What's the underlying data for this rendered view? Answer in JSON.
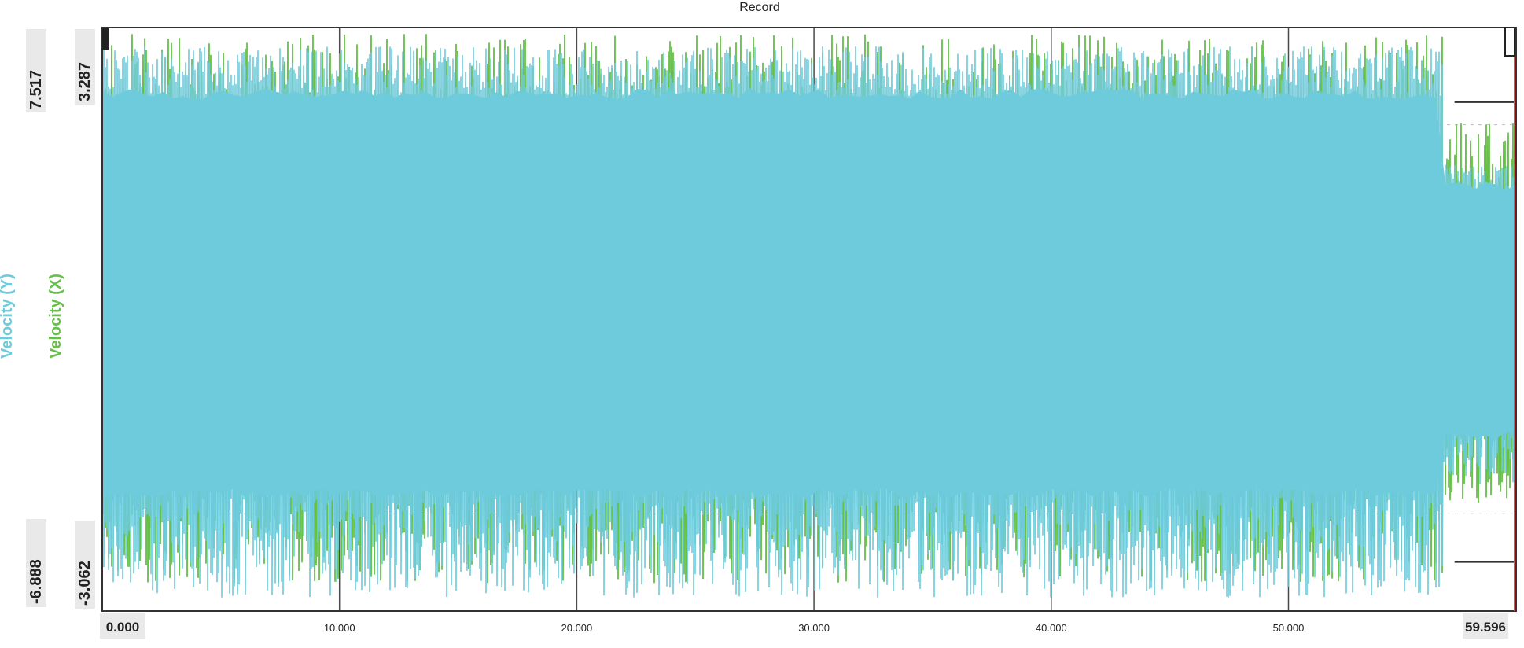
{
  "chart_data": {
    "type": "line",
    "title": "Record",
    "x_range": [
      0.0,
      59.596
    ],
    "x_ticks": [
      {
        "value": 0.0,
        "label": "0.000",
        "boxed": true
      },
      {
        "value": 10.0,
        "label": "10.000",
        "boxed": false
      },
      {
        "value": 20.0,
        "label": "20.000",
        "boxed": false
      },
      {
        "value": 30.0,
        "label": "30.000",
        "boxed": false
      },
      {
        "value": 40.0,
        "label": "40.000",
        "boxed": false
      },
      {
        "value": 50.0,
        "label": "50.000",
        "boxed": false
      },
      {
        "value": 59.596,
        "label": "59.596",
        "boxed": true
      }
    ],
    "axes": [
      {
        "series": "Velocity (Y)",
        "max_label": "7.517",
        "min_label": "-6.888",
        "ylim": [
          -6.888,
          7.517
        ],
        "color": "#6ecbdb"
      },
      {
        "series": "Velocity (X)",
        "max_label": "3.287",
        "min_label": "-3.062",
        "ylim": [
          -3.062,
          3.287
        ],
        "color": "#66c04a"
      }
    ],
    "series": [
      {
        "name": "Velocity (X)",
        "color": "#66c04a",
        "envelope": {
          "peak_upper": [
            1.5,
            3.2
          ],
          "peak_lower": [
            -3.1,
            -1.5
          ],
          "tail_start_x": 56.5,
          "tail_scale": 0.45
        }
      },
      {
        "name": "Velocity (Y)",
        "color": "#6ecbdb",
        "envelope": {
          "band": [
            -4.1,
            6.0
          ],
          "peak_upper": [
            6.2,
            7.5
          ],
          "peak_lower": [
            -6.9,
            -4.3
          ],
          "tail_start_x": 56.5,
          "tail_scale": 0.45
        }
      }
    ],
    "reference_lines": [
      2.2,
      -2.2
    ],
    "grid": true,
    "legend": "left-vertical"
  }
}
